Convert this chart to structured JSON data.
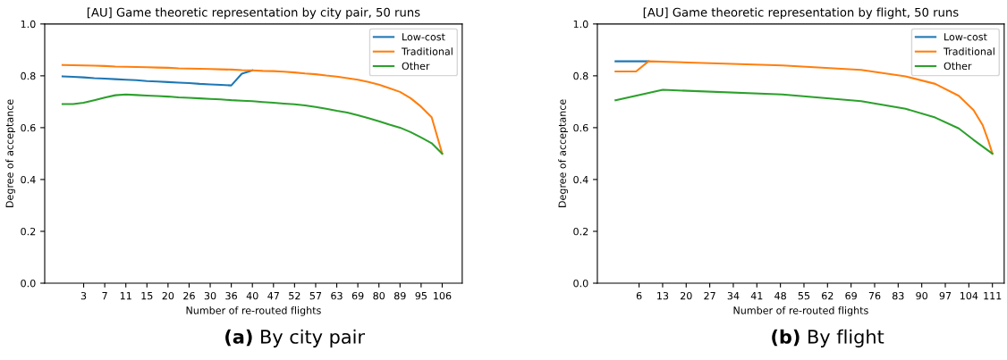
{
  "chart_data": [
    {
      "type": "line",
      "title": "[AU] Game theoretic representation by city pair, 50 runs",
      "xlabel": "Number of re-routed flights",
      "ylabel": "Degree of acceptance",
      "ylim": [
        0,
        1.0
      ],
      "yticks": [
        {
          "value": 0,
          "label": "0.0"
        },
        {
          "value": 0.2,
          "label": "0.2"
        },
        {
          "value": 0.4,
          "label": "0.4"
        },
        {
          "value": 0.6,
          "label": "0.6"
        },
        {
          "value": 0.8,
          "label": "0.8"
        },
        {
          "value": 1,
          "label": "1.0"
        }
      ],
      "categories": [
        null,
        null,
        "3",
        null,
        "7",
        null,
        "11",
        null,
        "15",
        null,
        "20",
        null,
        "26",
        null,
        "30",
        null,
        "36",
        null,
        "40",
        null,
        "47",
        null,
        "52",
        null,
        "57",
        null,
        "63",
        null,
        "69",
        null,
        "80",
        null,
        "89",
        null,
        "95",
        null,
        "106"
      ],
      "series": [
        {
          "name": "Low-cost",
          "color": "#1f77b4",
          "values": [
            0.798,
            0.796,
            0.794,
            0.791,
            0.789,
            0.787,
            0.785,
            0.783,
            0.78,
            0.778,
            0.776,
            0.774,
            0.772,
            0.769,
            0.767,
            0.765,
            0.763,
            0.808,
            0.821,
            null,
            null,
            null,
            null,
            null,
            null,
            null,
            null,
            null,
            null,
            null,
            null,
            null,
            null,
            null,
            null,
            null,
            null
          ]
        },
        {
          "name": "Traditional",
          "color": "#ff7f0e",
          "values": [
            0.842,
            0.841,
            0.84,
            0.839,
            0.838,
            0.836,
            0.835,
            0.834,
            0.833,
            0.832,
            0.831,
            0.829,
            0.828,
            0.827,
            0.826,
            0.825,
            0.824,
            0.822,
            0.821,
            0.819,
            0.818,
            0.816,
            0.813,
            0.809,
            0.806,
            0.801,
            0.797,
            0.791,
            0.785,
            0.776,
            0.766,
            0.752,
            0.738,
            0.714,
            0.681,
            0.64,
            0.5
          ]
        },
        {
          "name": "Other",
          "color": "#2ca02c",
          "values": [
            0.691,
            0.691,
            0.696,
            0.706,
            0.716,
            0.725,
            0.728,
            0.726,
            0.724,
            0.722,
            0.72,
            0.717,
            0.715,
            0.713,
            0.711,
            0.709,
            0.706,
            0.704,
            0.702,
            0.699,
            0.696,
            0.693,
            0.69,
            0.686,
            0.68,
            0.673,
            0.665,
            0.658,
            0.648,
            0.637,
            0.625,
            0.612,
            0.6,
            0.583,
            0.562,
            0.54,
            0.5
          ]
        }
      ],
      "legend": "top right",
      "annotations": [
        "(a) By city pair"
      ]
    },
    {
      "type": "line",
      "title": "[AU] Game theoretic representation by flight, 50 runs",
      "xlabel": "Number of re-routed flights",
      "ylabel": "Degree of acceptance",
      "xlim": [
        -6.4,
        114.5
      ],
      "ylim": [
        0,
        1.0
      ],
      "yticks": [
        {
          "value": 0,
          "label": "0.0"
        },
        {
          "value": 0.2,
          "label": "0.2"
        },
        {
          "value": 0.4,
          "label": "0.4"
        },
        {
          "value": 0.6,
          "label": "0.6"
        },
        {
          "value": 0.8,
          "label": "0.8"
        },
        {
          "value": 1,
          "label": "1.0"
        }
      ],
      "xticks": [
        6,
        13,
        20,
        27,
        34,
        41,
        48,
        55,
        62,
        69,
        76,
        83,
        90,
        97,
        104,
        111
      ],
      "series": [
        {
          "name": "Low-cost",
          "color": "#1f77b4",
          "x": [
            -1,
            8.8
          ],
          "values": [
            0.856,
            0.856
          ]
        },
        {
          "name": "Traditional",
          "color": "#ff7f0e",
          "x": [
            -1,
            5.1,
            8.8,
            48.6,
            72,
            85.2,
            94,
            101,
            105.4,
            108.1,
            109.7,
            111
          ],
          "values": [
            0.817,
            0.817,
            0.856,
            0.84,
            0.823,
            0.798,
            0.769,
            0.723,
            0.668,
            0.61,
            0.553,
            0.5
          ]
        },
        {
          "name": "Other",
          "color": "#2ca02c",
          "x": [
            -1,
            13.05,
            48.6,
            72,
            85.2,
            94,
            101,
            105.4,
            111
          ],
          "values": [
            0.706,
            0.746,
            0.728,
            0.702,
            0.673,
            0.639,
            0.597,
            0.553,
            0.5
          ]
        }
      ],
      "legend": "top right",
      "annotations": [
        "(b) By flight"
      ]
    }
  ]
}
